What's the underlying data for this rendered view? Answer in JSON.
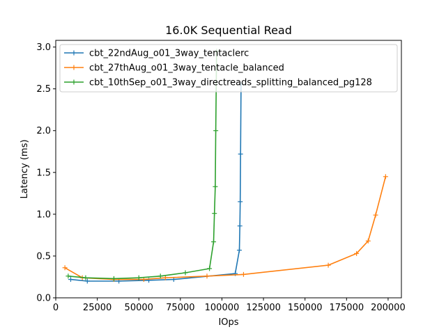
{
  "chart_data": {
    "type": "line",
    "title": "16.0K  Sequential Read",
    "xlabel": "IOps",
    "ylabel": "Latency (ms)",
    "xlim": [
      0,
      208000
    ],
    "ylim": [
      0,
      3.08
    ],
    "xticks": [
      0,
      25000,
      50000,
      75000,
      100000,
      125000,
      150000,
      175000,
      200000
    ],
    "yticks": [
      0.0,
      0.5,
      1.0,
      1.5,
      2.0,
      2.5,
      3.0
    ],
    "xtick_labels": [
      "0",
      "25000",
      "50000",
      "75000",
      "100000",
      "125000",
      "150000",
      "175000",
      "200000"
    ],
    "ytick_labels": [
      "0.0",
      "0.5",
      "1.0",
      "1.5",
      "2.0",
      "2.5",
      "3.0"
    ],
    "grid": false,
    "legend_position": "top-left",
    "series": [
      {
        "name": "cbt_22ndAug_o01_3way_tentaclerc",
        "color": "#1f77b4",
        "x": [
          9000,
          19000,
          38000,
          56000,
          71000,
          108000,
          110500,
          110800,
          111000,
          111200,
          111500
        ],
        "y": [
          0.22,
          0.2,
          0.2,
          0.21,
          0.22,
          0.29,
          0.57,
          0.86,
          1.15,
          1.72,
          2.55
        ]
      },
      {
        "name": "cbt_27thAug_o01_3way_tentacle_balanced",
        "color": "#ff7f0e",
        "x": [
          5500,
          16000,
          35000,
          53000,
          66000,
          91000,
          113000,
          164000,
          181000,
          188000,
          192500,
          198500
        ],
        "y": [
          0.36,
          0.24,
          0.22,
          0.22,
          0.24,
          0.26,
          0.28,
          0.39,
          0.53,
          0.68,
          0.99,
          1.45
        ]
      },
      {
        "name": "cbt_10thSep_o01_3way_directreads_splitting_balanced_pg128",
        "color": "#2ca02c",
        "x": [
          7500,
          18000,
          35000,
          50000,
          63000,
          78000,
          92500,
          95000,
          95500,
          96000,
          96300,
          96800
        ],
        "y": [
          0.26,
          0.24,
          0.23,
          0.24,
          0.26,
          0.3,
          0.35,
          0.67,
          1.01,
          1.33,
          2.0,
          2.95
        ]
      }
    ]
  }
}
